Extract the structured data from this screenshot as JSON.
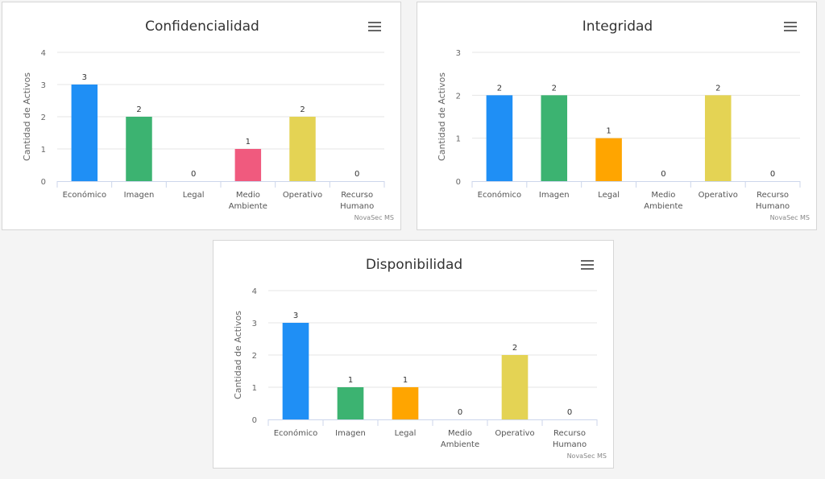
{
  "chart_data": [
    {
      "type": "bar",
      "title": "Confidencialidad",
      "ylabel": "Cantidad de Activos",
      "xlabel": "",
      "ylim": [
        0,
        4
      ],
      "yticks": [
        0,
        1,
        2,
        3,
        4
      ],
      "categories": [
        "Económico",
        "Imagen",
        "Legal",
        "Medio Ambiente",
        "Operativo",
        "Recurso Humano"
      ],
      "category_lines": [
        [
          "Económico"
        ],
        [
          "Imagen"
        ],
        [
          "Legal"
        ],
        [
          "Medio",
          "Ambiente"
        ],
        [
          "Operativo"
        ],
        [
          "Recurso",
          "Humano"
        ]
      ],
      "values": [
        3,
        2,
        0,
        1,
        2,
        0
      ],
      "colors": [
        "#1f8ff5",
        "#3cb371",
        "#ffa500",
        "#f05a7e",
        "#e4d354",
        "#8085e9"
      ],
      "credits": "NovaSec MS",
      "legend": "none",
      "grid": true
    },
    {
      "type": "bar",
      "title": "Integridad",
      "ylabel": "Cantidad de Activos",
      "xlabel": "",
      "ylim": [
        0,
        3
      ],
      "yticks": [
        0,
        1,
        2,
        3
      ],
      "categories": [
        "Económico",
        "Imagen",
        "Legal",
        "Medio Ambiente",
        "Operativo",
        "Recurso Humano"
      ],
      "category_lines": [
        [
          "Económico"
        ],
        [
          "Imagen"
        ],
        [
          "Legal"
        ],
        [
          "Medio",
          "Ambiente"
        ],
        [
          "Operativo"
        ],
        [
          "Recurso",
          "Humano"
        ]
      ],
      "values": [
        2,
        2,
        1,
        0,
        2,
        0
      ],
      "colors": [
        "#1f8ff5",
        "#3cb371",
        "#ffa500",
        "#f05a7e",
        "#e4d354",
        "#8085e9"
      ],
      "credits": "NovaSec MS",
      "legend": "none",
      "grid": true
    },
    {
      "type": "bar",
      "title": "Disponibilidad",
      "ylabel": "Cantidad de Activos",
      "xlabel": "",
      "ylim": [
        0,
        4
      ],
      "yticks": [
        0,
        1,
        2,
        3,
        4
      ],
      "categories": [
        "Económico",
        "Imagen",
        "Legal",
        "Medio Ambiente",
        "Operativo",
        "Recurso Humano"
      ],
      "category_lines": [
        [
          "Económico"
        ],
        [
          "Imagen"
        ],
        [
          "Legal"
        ],
        [
          "Medio",
          "Ambiente"
        ],
        [
          "Operativo"
        ],
        [
          "Recurso",
          "Humano"
        ]
      ],
      "values": [
        3,
        1,
        1,
        0,
        2,
        0
      ],
      "colors": [
        "#1f8ff5",
        "#3cb371",
        "#ffa500",
        "#f05a7e",
        "#e4d354",
        "#8085e9"
      ],
      "credits": "NovaSec MS",
      "legend": "none",
      "grid": true
    }
  ],
  "menu_icon": "hamburger-menu-icon"
}
